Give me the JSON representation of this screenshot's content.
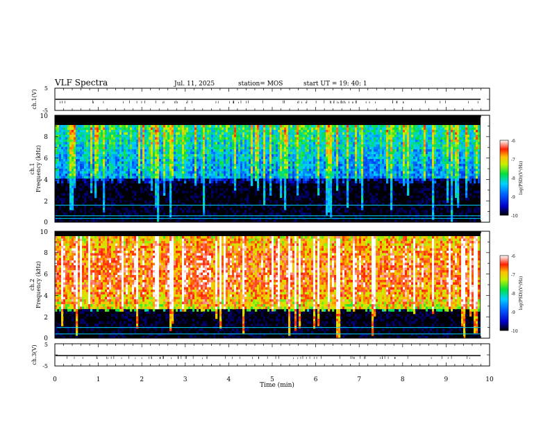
{
  "header": {
    "title": "VLF Spectra",
    "date": "Jul. 11, 2025",
    "station": "station= MOS",
    "start": "start  UT =   19: 40: 1"
  },
  "chart_data": [
    {
      "type": "line",
      "name": "ch.1 waveform",
      "ylabel": "ch.1(V)",
      "ylim": [
        -5,
        5
      ],
      "yticks": [
        "5",
        "-5"
      ],
      "level": -1.5
    },
    {
      "type": "heatmap",
      "name": "ch.1 spectrogram",
      "ylabel": "ch.1",
      "ylabel2": "Frequency (kHz)",
      "ylim": [
        0,
        10
      ],
      "yticks": [
        "0",
        "2",
        "4",
        "6",
        "8",
        "10"
      ],
      "xlim": [
        0,
        9.8
      ],
      "colorbar": {
        "label": "log(PSD)(V²/Hz)",
        "ticks": [
          "-6",
          "-7",
          "-8",
          "-9",
          "-10"
        ],
        "range": [
          -10,
          -6
        ]
      },
      "band_khz": [
        4.2,
        9.2
      ],
      "base_level": -8.9,
      "lines_khz": [
        1.6,
        0.6,
        0.35
      ]
    },
    {
      "type": "heatmap",
      "name": "ch.2 spectrogram",
      "ylabel": "ch.2",
      "ylabel2": "Frequency (kHz)",
      "ylim": [
        0,
        10
      ],
      "yticks": [
        "0",
        "2",
        "4",
        "6",
        "8",
        "10"
      ],
      "xlim": [
        0,
        9.8
      ],
      "colorbar": {
        "label": "log(PSD)(V²/Hz)",
        "ticks": [
          "-6",
          "-7",
          "-8",
          "-9",
          "-10"
        ],
        "range": [
          -10,
          -6
        ]
      },
      "band_khz": [
        3.0,
        9.6
      ],
      "peak_khz": 6.3,
      "base_level": -7.3,
      "lines_khz": [
        1.0,
        0.4
      ]
    },
    {
      "type": "line",
      "name": "ch.3 waveform",
      "ylabel": "ch.3(V)",
      "ylim": [
        -5,
        5
      ],
      "yticks": [
        "5",
        "-5"
      ],
      "level": -1.5
    }
  ],
  "xaxis": {
    "label": "Time  (min)",
    "ticks": [
      "0",
      "1",
      "2",
      "3",
      "4",
      "5",
      "6",
      "7",
      "8",
      "9",
      "10"
    ],
    "range": [
      0,
      10
    ]
  }
}
